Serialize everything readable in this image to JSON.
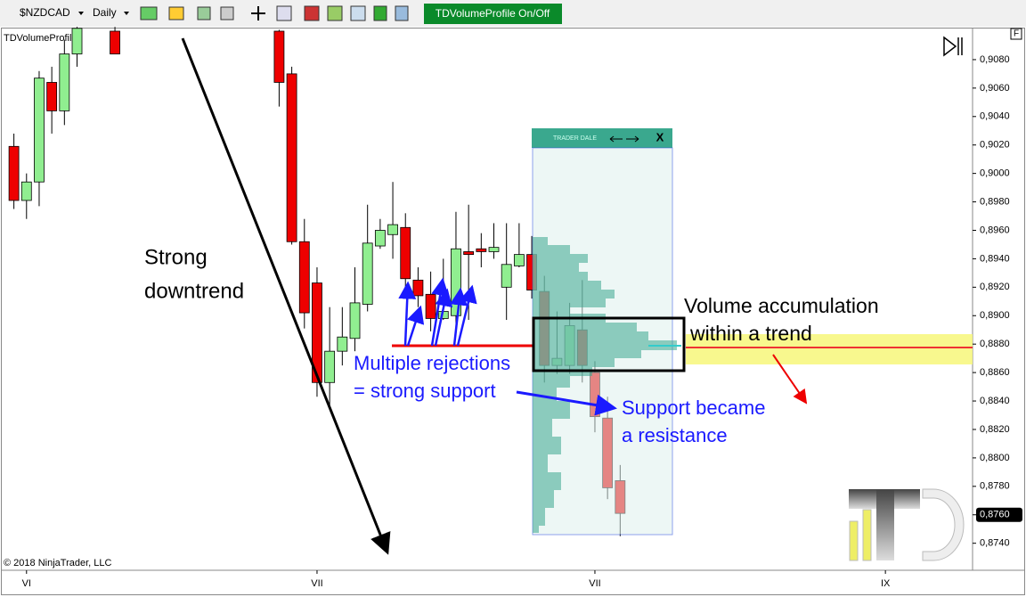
{
  "toolbar": {
    "symbol": "$NZDCAD",
    "interval": "Daily",
    "button": "TDVolumeProfile On/Off"
  },
  "chart_data": {
    "type": "candlestick",
    "indicator_label": "TDVolumeProfile",
    "copyright": "© 2018 NinjaTrader, LLC",
    "axis_button": "F",
    "x": [
      -1,
      0,
      1,
      2,
      3,
      4,
      7,
      20,
      21,
      22,
      23,
      24,
      25,
      26,
      27,
      28,
      29,
      30,
      31,
      32,
      33,
      34,
      35,
      36,
      37,
      38,
      39,
      40,
      41,
      42,
      43,
      44,
      45,
      46,
      47
    ],
    "open": [
      0.9019,
      0.8981,
      0.8994,
      0.9064,
      0.9044,
      0.9084,
      0.91,
      0.91,
      0.907,
      0.8952,
      0.8923,
      0.8853,
      0.8875,
      0.8884,
      0.8908,
      0.8949,
      0.8957,
      0.8962,
      0.8925,
      0.8915,
      0.8898,
      0.89,
      0.8945,
      0.8947,
      0.8945,
      0.892,
      0.8935,
      0.8943,
      0.8917,
      0.8865,
      0.8865,
      0.889,
      0.886,
      0.8828,
      0.8784
    ],
    "high": [
      0.9028,
      0.9,
      0.9072,
      0.9075,
      0.9094,
      0.9103,
      0.9103,
      0.9101,
      0.9075,
      0.8968,
      0.8934,
      0.8906,
      0.8906,
      0.8934,
      0.8978,
      0.8968,
      0.8994,
      0.8972,
      0.8934,
      0.8931,
      0.894,
      0.8973,
      0.8978,
      0.8958,
      0.8965,
      0.8965,
      0.8965,
      0.8956,
      0.8928,
      0.8903,
      0.8909,
      0.8925,
      0.8868,
      0.8843,
      0.8795
    ],
    "low": [
      0.8975,
      0.8968,
      0.8977,
      0.9028,
      0.9034,
      0.9075,
      0.9084,
      0.9047,
      0.895,
      0.8891,
      0.8843,
      0.8837,
      0.8865,
      0.8875,
      0.8903,
      0.8947,
      0.894,
      0.8918,
      0.8906,
      0.8889,
      0.8897,
      0.8889,
      0.8897,
      0.8934,
      0.894,
      0.8897,
      0.8934,
      0.8912,
      0.8853,
      0.8859,
      0.8859,
      0.8853,
      0.8818,
      0.8771,
      0.8745
    ],
    "close": [
      0.8981,
      0.8994,
      0.9067,
      0.9044,
      0.9084,
      0.9102,
      0.9084,
      0.9064,
      0.8952,
      0.8902,
      0.8853,
      0.8875,
      0.8885,
      0.8909,
      0.8951,
      0.896,
      0.8964,
      0.8926,
      0.8914,
      0.8898,
      0.8903,
      0.8947,
      0.8943,
      0.8945,
      0.8948,
      0.8936,
      0.8943,
      0.8918,
      0.8865,
      0.887,
      0.8893,
      0.8865,
      0.8829,
      0.8779,
      0.8761
    ],
    "up_color": "#90ee90",
    "down_color": "#ee0000",
    "xlim": [
      -2.1,
      74.9
    ],
    "xticks": [
      {
        "value": 0,
        "label": "VI"
      },
      {
        "value": 23,
        "label": "VII"
      },
      {
        "value": 45,
        "label": "VII"
      },
      {
        "value": 68,
        "label": "IX"
      }
    ],
    "ylim": [
      0.8721,
      0.91
    ],
    "yticks": [
      {
        "value": 0.874,
        "label": "0,8740"
      },
      {
        "value": 0.876,
        "label": "0,8760"
      },
      {
        "value": 0.878,
        "label": "0,8780"
      },
      {
        "value": 0.88,
        "label": "0,8800"
      },
      {
        "value": 0.882,
        "label": "0,8820"
      },
      {
        "value": 0.884,
        "label": "0,8840"
      },
      {
        "value": 0.886,
        "label": "0,8860"
      },
      {
        "value": 0.888,
        "label": "0,8880"
      },
      {
        "value": 0.89,
        "label": "0,8900"
      },
      {
        "value": 0.892,
        "label": "0,8920"
      },
      {
        "value": 0.894,
        "label": "0,8940"
      },
      {
        "value": 0.896,
        "label": "0,8960"
      },
      {
        "value": 0.898,
        "label": "0,8980"
      },
      {
        "value": 0.9,
        "label": "0,9000"
      },
      {
        "value": 0.902,
        "label": "0,9020"
      },
      {
        "value": 0.904,
        "label": "0,9040"
      },
      {
        "value": 0.906,
        "label": "0,9060"
      },
      {
        "value": 0.908,
        "label": "0,9080"
      }
    ],
    "price_marker": {
      "value": 0.876,
      "label": "0,8760"
    },
    "annotations": [
      "Strong",
      "downtrend",
      "Volume accumulation",
      "within a trend",
      "Multiple rejections",
      "= strong support",
      "Support became",
      "a resistance"
    ]
  },
  "profile_panel": {
    "brand": "TRADER DALE",
    "close": "X"
  }
}
